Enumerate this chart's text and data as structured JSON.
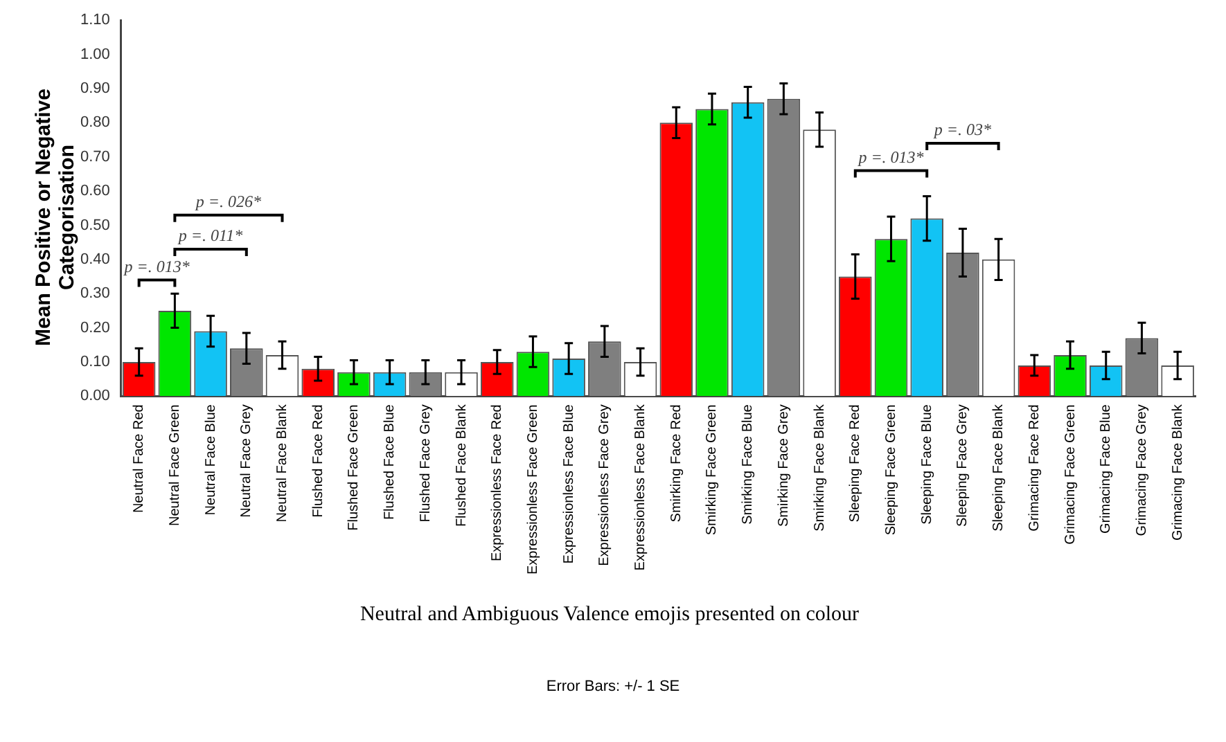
{
  "chart_data": {
    "type": "bar",
    "xlabel": "Neutral and Ambiguous Valence emojis presented on colour",
    "ylabel": "Mean Positive or Negative Categorisation",
    "categories": [
      "Neutral Face Red",
      "Neutral Face Green",
      "Neutral Face Blue",
      "Neutral Face Grey",
      "Neutral Face Blank",
      "Flushed Face Red",
      "Flushed Face Green",
      "Flushed Face Blue",
      "Flushed Face Grey",
      "Flushed Face Blank",
      "Expressionless Face Red",
      "Expressionless Face Green",
      "Expressionless Face Blue",
      "Expressionless Face Grey",
      "Expressionless Face Blank",
      "Smirking Face Red",
      "Smirking Face Green",
      "Smirking Face Blue",
      "Smirking Face Grey",
      "Smirking Face Blank",
      "Sleeping Face Red",
      "Sleeping Face Green",
      "Sleeping Face Blue",
      "Sleeping Face Grey",
      "Sleeping Face Blank",
      "Grimacing Face Red",
      "Grimacing Face Green",
      "Grimacing Face Blue",
      "Grimacing Face Grey",
      "Grimacing Face Blank"
    ],
    "values": [
      0.1,
      0.25,
      0.19,
      0.14,
      0.12,
      0.08,
      0.07,
      0.07,
      0.07,
      0.07,
      0.1,
      0.13,
      0.11,
      0.16,
      0.1,
      0.8,
      0.84,
      0.86,
      0.87,
      0.78,
      0.35,
      0.46,
      0.52,
      0.42,
      0.4,
      0.09,
      0.12,
      0.09,
      0.17,
      0.09
    ],
    "errors": [
      0.04,
      0.05,
      0.045,
      0.045,
      0.04,
      0.035,
      0.035,
      0.035,
      0.035,
      0.035,
      0.035,
      0.045,
      0.045,
      0.045,
      0.04,
      0.045,
      0.045,
      0.045,
      0.045,
      0.05,
      0.065,
      0.065,
      0.065,
      0.07,
      0.06,
      0.03,
      0.04,
      0.04,
      0.045,
      0.04
    ],
    "colors": [
      "#ff0000",
      "#00e600",
      "#12c3f4",
      "#7f7f7f",
      "#ffffff",
      "#ff0000",
      "#00e600",
      "#12c3f4",
      "#7f7f7f",
      "#ffffff",
      "#ff0000",
      "#00e600",
      "#12c3f4",
      "#7f7f7f",
      "#ffffff",
      "#ff0000",
      "#00e600",
      "#12c3f4",
      "#7f7f7f",
      "#ffffff",
      "#ff0000",
      "#00e600",
      "#12c3f4",
      "#7f7f7f",
      "#ffffff",
      "#ff0000",
      "#00e600",
      "#12c3f4",
      "#7f7f7f",
      "#ffffff"
    ],
    "ylim": [
      0,
      1.1
    ],
    "yticks": [
      {
        "value": 0,
        "label": "0.00"
      },
      {
        "value": 0.1,
        "label": "0.10"
      },
      {
        "value": 0.2,
        "label": "0.20"
      },
      {
        "value": 0.3,
        "label": "0.30"
      },
      {
        "value": 0.4,
        "label": "0.40"
      },
      {
        "value": 0.5,
        "label": "0.50"
      },
      {
        "value": 0.6,
        "label": "0.60"
      },
      {
        "value": 0.7,
        "label": "0.70"
      },
      {
        "value": 0.8,
        "label": "0.80"
      },
      {
        "value": 0.9,
        "label": "0.90"
      },
      {
        "value": 1.0,
        "label": "1.00"
      },
      {
        "value": 1.1,
        "label": "1.10"
      }
    ],
    "grid": false,
    "legend": false,
    "annotations": [
      "p =. 013*",
      "p =. 011*",
      "p =. 026*",
      "p =. 013*",
      "p =. 03*",
      "Error Bars: +/- 1 SE"
    ]
  }
}
